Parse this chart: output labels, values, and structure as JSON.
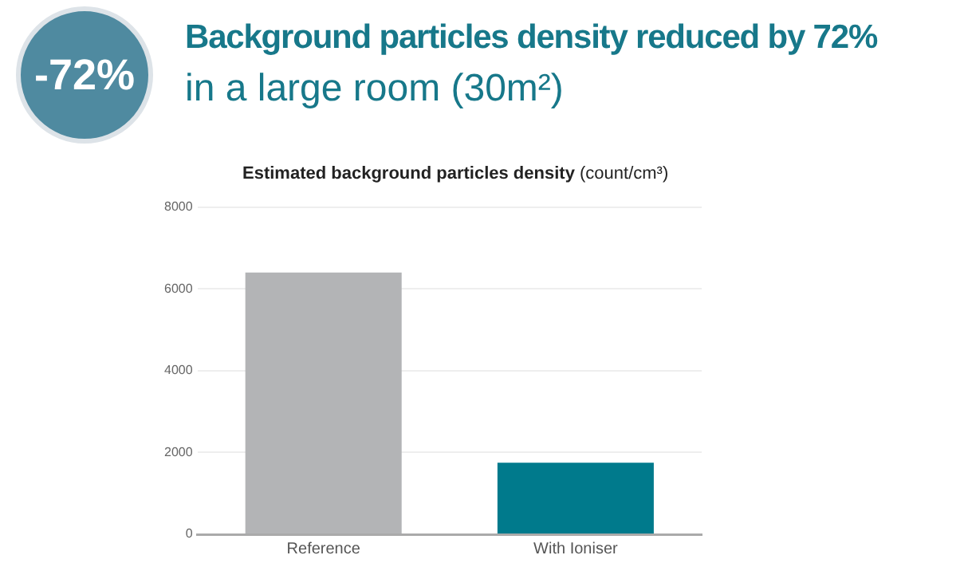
{
  "chart_data": {
    "type": "bar",
    "title": "Background particles density reduced by 72%",
    "subtitle": "in a large room (30m²)",
    "ylabel": "Estimated background particles density (count/cm³)",
    "annotations": [
      "-72%"
    ],
    "categories": [
      "Reference",
      "With Ioniser"
    ],
    "values": [
      6400,
      1750
    ],
    "colors": [
      "#b3b4b6",
      "#007a8c"
    ],
    "ylim": [
      0,
      8000
    ],
    "yticks": [
      0,
      2000,
      4000,
      6000,
      8000
    ],
    "grid": "y",
    "legend": false
  }
}
